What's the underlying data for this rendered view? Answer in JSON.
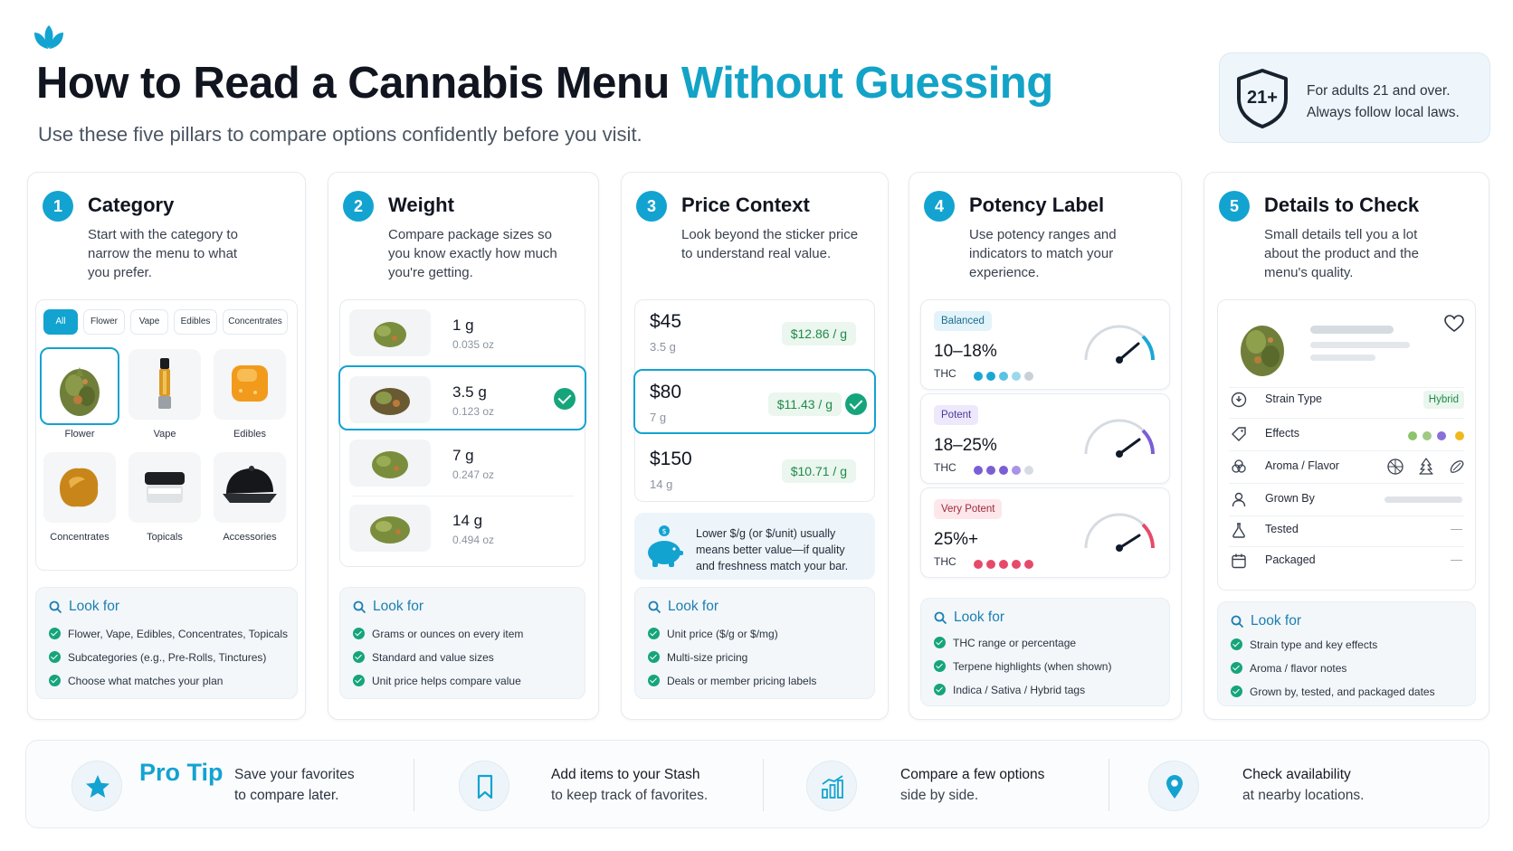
{
  "header": {
    "title_main": "How to Read a Cannabis Menu ",
    "title_accent": "Without Guessing",
    "subtitle": "Use these five pillars to compare options confidently before you visit.",
    "age_badge": "21+",
    "age_line1": "For adults 21 and over.",
    "age_line2": "Always follow local laws."
  },
  "look_for_label": "Look for",
  "cards": {
    "category": {
      "num": "1",
      "title": "Category",
      "desc_lines": [
        "Start with the category to",
        "narrow the menu to what",
        "you prefer."
      ],
      "chips": [
        "All",
        "Flower",
        "Vape",
        "Edibles",
        "Concentrates"
      ],
      "tiles": [
        "Flower",
        "Vape",
        "Edibles",
        "Concentrates",
        "Topicals",
        "Accessories"
      ],
      "look_for": [
        "Flower, Vape, Edibles, Concentrates, Topicals",
        "Subcategories (e.g., Pre-Rolls, Tinctures)",
        "Choose what matches your plan"
      ]
    },
    "weight": {
      "num": "2",
      "title": "Weight",
      "desc_lines": [
        "Compare package sizes so",
        "you know exactly how much",
        "you're getting."
      ],
      "rows": [
        {
          "g": "1 g",
          "oz": "0.035 oz"
        },
        {
          "g": "3.5 g",
          "oz": "0.123 oz"
        },
        {
          "g": "7 g",
          "oz": "0.247 oz"
        },
        {
          "g": "14 g",
          "oz": "0.494 oz"
        }
      ],
      "look_for": [
        "Grams or ounces on every item",
        "Standard and value sizes",
        "Unit price helps compare value"
      ]
    },
    "price": {
      "num": "3",
      "title": "Price Context",
      "desc_lines": [
        "Look beyond the sticker price",
        "to understand real value."
      ],
      "rows": [
        {
          "price": "$45",
          "weight": "3.5 g",
          "per_g": "$12.86 / g"
        },
        {
          "price": "$80",
          "weight": "7 g",
          "per_g": "$11.43 / g"
        },
        {
          "price": "$150",
          "weight": "14 g",
          "per_g": "$10.71 / g"
        }
      ],
      "tip_lines": [
        "Lower $/g (or $/unit) usually",
        "means better value—if quality",
        "and freshness match your bar."
      ],
      "look_for": [
        "Unit price ($/g or $/mg)",
        "Multi-size pricing",
        "Deals or member pricing labels"
      ]
    },
    "potency": {
      "num": "4",
      "title": "Potency Label",
      "desc_lines": [
        "Use potency ranges and",
        "indicators to match your",
        "experience."
      ],
      "levels": [
        {
          "badge": "Balanced",
          "range": "10–18%",
          "thc": "THC"
        },
        {
          "badge": "Potent",
          "range": "18–25%",
          "thc": "THC"
        },
        {
          "badge": "Very Potent",
          "range": "25%+",
          "thc": "THC"
        }
      ],
      "look_for": [
        "THC range or percentage",
        "Terpene highlights (when shown)",
        "Indica / Sativa / Hybrid tags"
      ]
    },
    "details": {
      "num": "5",
      "title": "Details to Check",
      "desc_lines": [
        "Small details tell you a lot",
        "about the product and the",
        "menu's quality."
      ],
      "rows": [
        "Strain Type",
        "Effects",
        "Aroma / Flavor",
        "Grown By",
        "Tested",
        "Packaged"
      ],
      "hybrid": "Hybrid",
      "dash": "—",
      "look_for": [
        "Strain type and key effects",
        "Aroma / flavor notes",
        "Grown by, tested, and packaged dates"
      ]
    }
  },
  "strip": {
    "protip": "Pro Tip",
    "items": [
      {
        "line1": "Save your favorites",
        "line2": "to compare later."
      },
      {
        "line1": "Add items to your Stash",
        "line2": "to keep track of favorites."
      },
      {
        "line1": "Compare a few options",
        "line2": "side by side."
      },
      {
        "line1": "Check availability",
        "line2": "at nearby locations."
      }
    ]
  },
  "colors": {
    "accent": "#13a3d1",
    "check": "#16a57a",
    "balanced": "#1ba7d6",
    "potent": "#7b5ed6",
    "very_potent": "#e64a6a"
  }
}
